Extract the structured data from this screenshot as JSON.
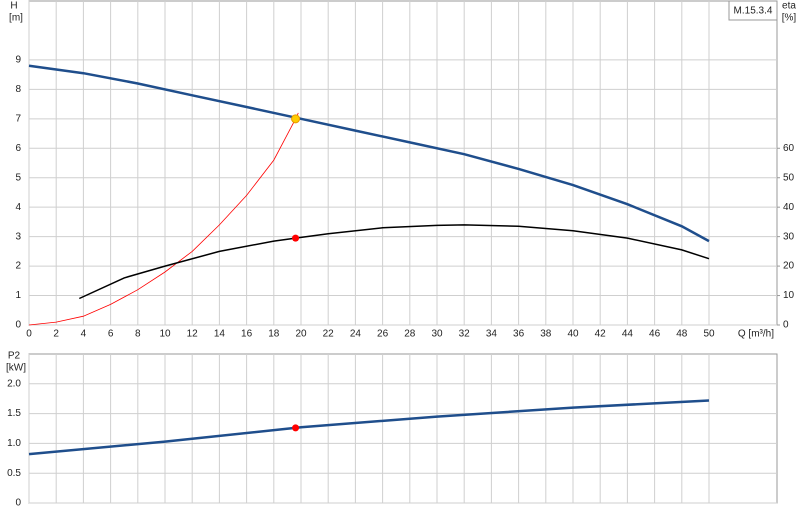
{
  "chart_data": [
    {
      "type": "line",
      "y_label": "H",
      "y_unit": "[m]",
      "y2_label": "eta",
      "y2_unit": "[%]",
      "x_label": "Q [m³/h]",
      "label_box": "M.15.3.4",
      "xlim": [
        0,
        55
      ],
      "xticks": [
        0,
        2,
        4,
        6,
        8,
        10,
        12,
        14,
        16,
        18,
        20,
        22,
        24,
        26,
        28,
        30,
        32,
        34,
        36,
        38,
        40,
        42,
        44,
        46,
        48,
        50
      ],
      "ylim": [
        0,
        11
      ],
      "yticks": [
        0,
        1,
        2,
        3,
        4,
        5,
        6,
        7,
        8,
        9
      ],
      "y2lim": [
        0,
        110
      ],
      "y2ticks": [
        0,
        10,
        20,
        30,
        40,
        50,
        60
      ],
      "grid": true,
      "show_xtick_labels": true,
      "series": [
        {
          "style": "line",
          "color": "#ff0000",
          "x": [
            0,
            2,
            4,
            6,
            8,
            10,
            12,
            14,
            16,
            18,
            19.6,
            19.8
          ],
          "values": [
            0,
            0.1,
            0.3,
            0.7,
            1.2,
            1.8,
            2.5,
            3.4,
            4.4,
            5.6,
            7.0,
            7.2
          ]
        },
        {
          "style": "line",
          "color": "#1f4e8c",
          "x": [
            0,
            4,
            8,
            12,
            16,
            20,
            24,
            28,
            32,
            36,
            40,
            44,
            48,
            50
          ],
          "values": [
            8.8,
            8.55,
            8.2,
            7.8,
            7.4,
            7.0,
            6.6,
            6.2,
            5.8,
            5.3,
            4.75,
            4.1,
            3.35,
            2.85
          ]
        },
        {
          "style": "line",
          "color": "#000000",
          "axis": "y2",
          "x": [
            3.7,
            7,
            10,
            14,
            18,
            19.6,
            22,
            26,
            30,
            32,
            36,
            40,
            44,
            48,
            50
          ],
          "values": [
            9,
            16,
            20,
            25,
            28.5,
            29.5,
            31,
            33,
            33.8,
            34,
            33.5,
            32,
            29.5,
            25.5,
            22.5
          ]
        },
        {
          "style": "point",
          "color": "#ffcc00",
          "x": [
            19.6
          ],
          "values": [
            7.0
          ]
        },
        {
          "style": "point",
          "color": "#ff0000",
          "axis": "y2",
          "x": [
            19.6
          ],
          "values": [
            29.5
          ]
        }
      ]
    },
    {
      "type": "line",
      "y_label": "P2",
      "y_unit": "[kW]",
      "xlim": [
        0,
        55
      ],
      "xticks": [
        0,
        2,
        4,
        6,
        8,
        10,
        12,
        14,
        16,
        18,
        20,
        22,
        24,
        26,
        28,
        30,
        32,
        34,
        36,
        38,
        40,
        42,
        44,
        46,
        48,
        50
      ],
      "ylim": [
        0,
        2.5
      ],
      "yticks": [
        0,
        0.5,
        {
          "value": 1,
          "label": "1.0"
        },
        1.5,
        {
          "value": 2,
          "label": "2.0"
        }
      ],
      "grid": true,
      "show_xtick_labels": false,
      "series": [
        {
          "style": "line",
          "color": "#1f4e8c",
          "x": [
            0,
            10,
            20,
            30,
            40,
            50
          ],
          "values": [
            0.82,
            1.03,
            1.27,
            1.45,
            1.6,
            1.72
          ]
        },
        {
          "style": "point",
          "color": "#ff0000",
          "x": [
            19.6
          ],
          "values": [
            1.26
          ]
        }
      ]
    }
  ]
}
